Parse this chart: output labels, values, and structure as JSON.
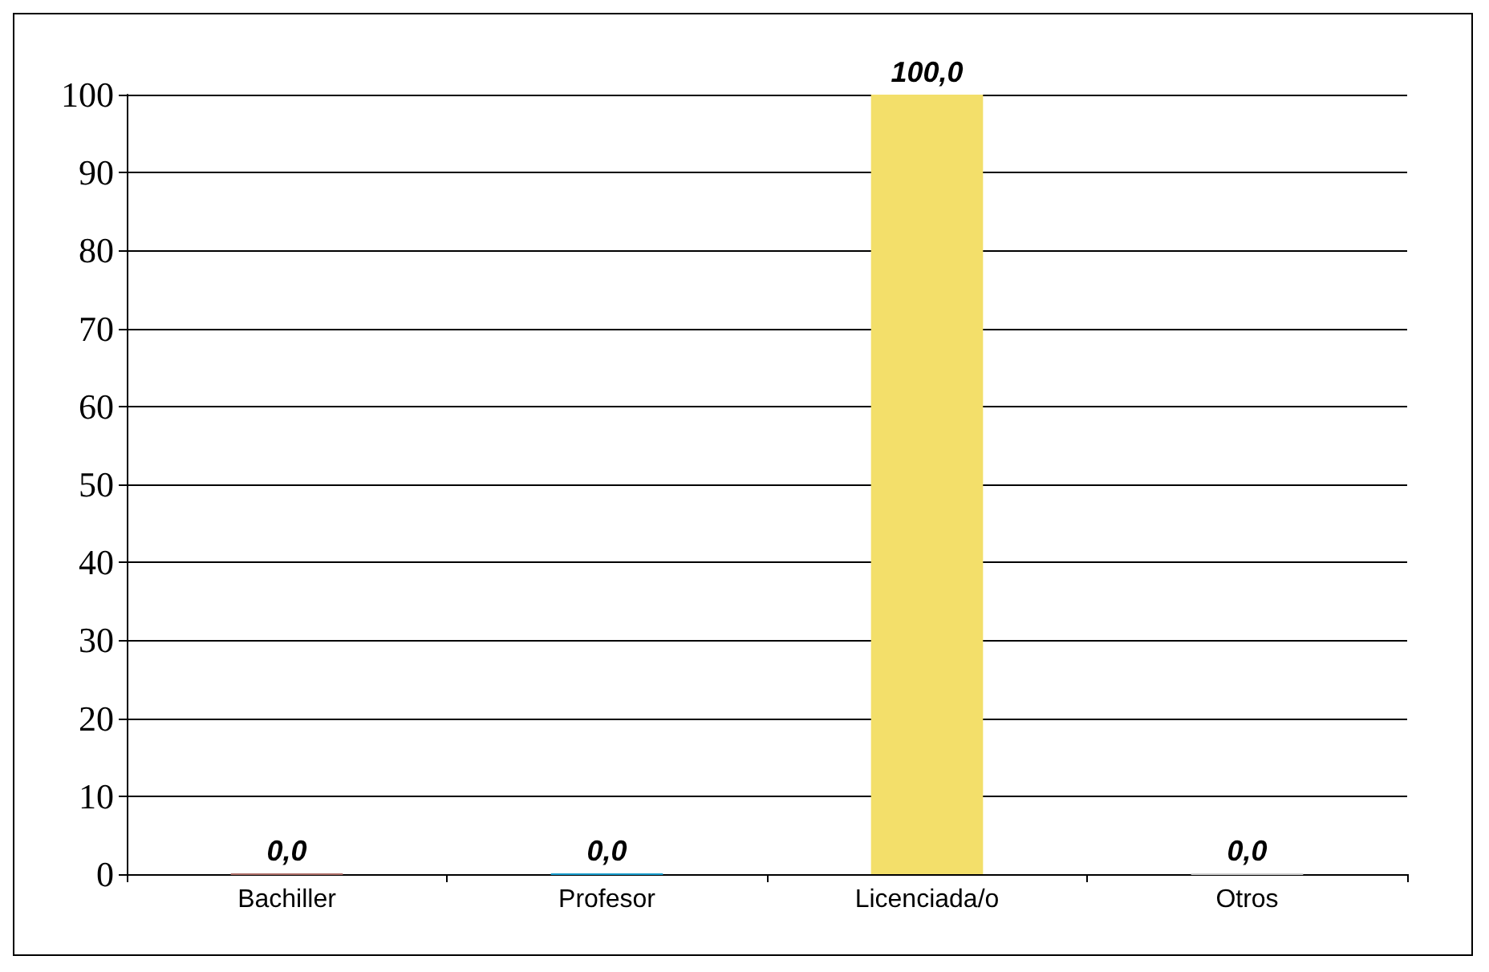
{
  "chart_data": {
    "type": "bar",
    "categories": [
      "Bachiller",
      "Profesor",
      "Licenciada/o",
      "Otros"
    ],
    "values": [
      0,
      0,
      100,
      0
    ],
    "colors": [
      "#b0706a",
      "#1a9fd0",
      "#f3df6a",
      "#cfcfcf"
    ],
    "value_labels": [
      "0,0",
      "0,0",
      "100,0",
      "0,0"
    ],
    "ylim": [
      0,
      100
    ],
    "yticks": [
      0,
      10,
      20,
      30,
      40,
      50,
      60,
      70,
      80,
      90,
      100
    ],
    "grid": "y"
  }
}
